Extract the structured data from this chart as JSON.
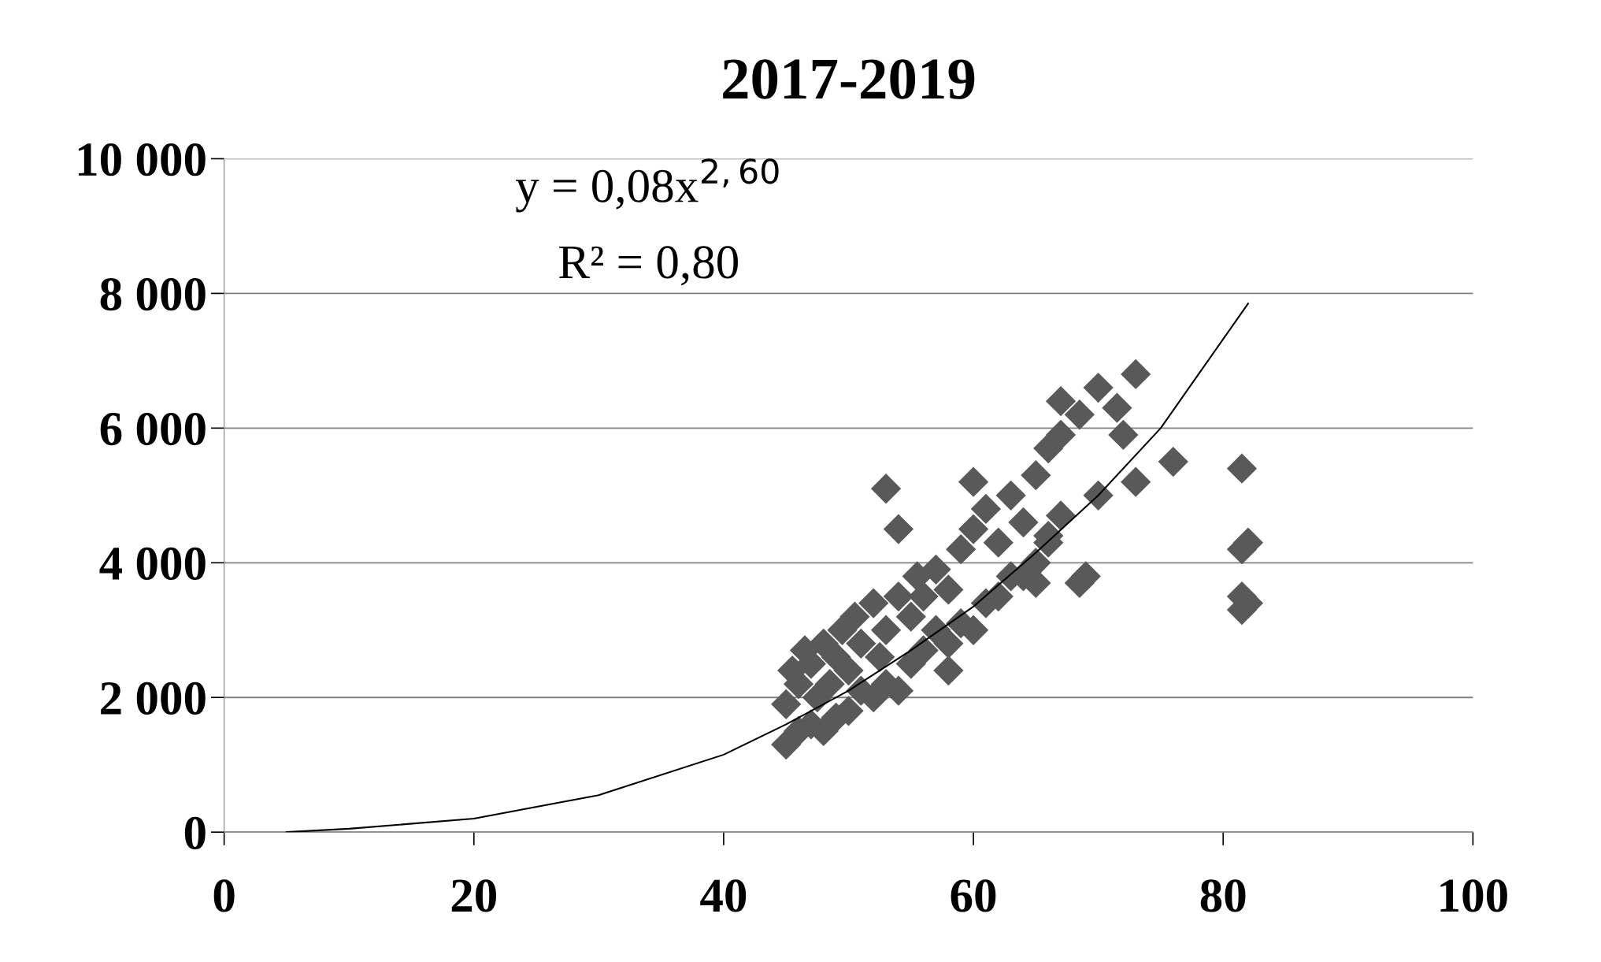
{
  "chart_data": {
    "type": "scatter",
    "title": "2017-2019",
    "series": [
      {
        "color": "#595959",
        "marker": "diamond",
        "x": [
          45,
          45,
          45.5,
          46,
          46,
          46.5,
          47,
          47,
          47.5,
          48,
          48,
          48.5,
          49,
          49,
          49.5,
          50,
          50,
          50.5,
          51,
          51,
          52,
          52,
          52.5,
          53,
          53,
          54,
          54,
          55,
          55,
          55.5,
          56,
          56,
          57,
          57,
          58,
          58,
          59,
          59,
          60,
          60,
          61,
          61,
          62,
          62,
          63,
          63,
          64,
          64,
          65,
          65,
          66,
          66,
          67,
          67,
          53,
          54,
          60,
          58,
          67,
          68.5,
          70,
          71.5,
          72,
          73,
          76,
          73,
          70,
          69,
          68.5,
          81.5,
          81.5,
          82,
          81.5,
          81.5,
          82,
          65,
          66
        ],
        "values": [
          1300,
          1900,
          2400,
          1500,
          2200,
          2700,
          1600,
          2500,
          2000,
          1500,
          2800,
          2200,
          1700,
          2600,
          3000,
          1800,
          2400,
          3200,
          2100,
          2800,
          2000,
          3400,
          2600,
          2200,
          3000,
          2100,
          3500,
          2500,
          3200,
          3800,
          2700,
          3500,
          3000,
          3900,
          2800,
          3600,
          3100,
          4200,
          3000,
          4500,
          3400,
          4800,
          3500,
          4300,
          3800,
          5000,
          3800,
          4600,
          4000,
          5300,
          4300,
          5700,
          4700,
          5900,
          5100,
          4500,
          5200,
          2400,
          6400,
          6200,
          6600,
          6300,
          5900,
          6800,
          5500,
          5200,
          5000,
          3800,
          3700,
          5400,
          4200,
          4300,
          3500,
          3300,
          3400,
          3700,
          4400
        ]
      },
      {
        "type": "line",
        "color": "#000000",
        "x": [
          5,
          10,
          20,
          30,
          40,
          45,
          50,
          55,
          60,
          65,
          70,
          75,
          82
        ],
        "values": [
          0,
          50,
          200,
          550,
          1150,
          1600,
          2100,
          2700,
          3350,
          4150,
          5000,
          6000,
          7850
        ]
      }
    ],
    "xlim": [
      0,
      100
    ],
    "xticks": [
      0,
      20,
      40,
      60,
      80,
      100
    ],
    "ylim": [
      0,
      10000
    ],
    "yticks": [
      {
        "value": 0,
        "label": "0"
      },
      {
        "value": 2000,
        "label": "2 000"
      },
      {
        "value": 4000,
        "label": "4 000"
      },
      {
        "value": 6000,
        "label": "6 000"
      },
      {
        "value": 8000,
        "label": "8 000"
      },
      {
        "value": 10000,
        "label": "10 000"
      }
    ],
    "grid": "y",
    "annotations": [
      "y = 0,08x$^{2,60}$",
      "R² = 0,80"
    ]
  }
}
